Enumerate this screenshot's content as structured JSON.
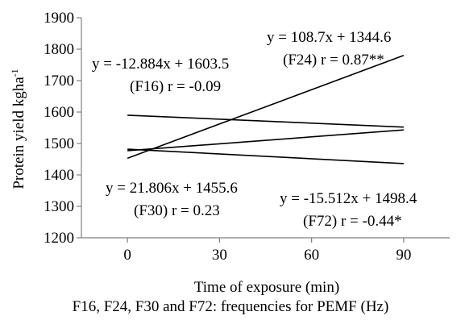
{
  "chart_data": {
    "type": "line",
    "xlabel": "Time of exposure (min)",
    "ylabel": "Protein yield kgha",
    "ylabel_superscript": "-1",
    "caption": "F16, F24, F30 and F72: frequencies for PEMF (Hz)",
    "x_ticks": [
      0,
      30,
      60,
      90
    ],
    "xlim": [
      -15,
      105
    ],
    "ylim": [
      1200,
      1900
    ],
    "y_ticks": [
      1200,
      1300,
      1400,
      1500,
      1600,
      1700,
      1800,
      1900
    ],
    "series": [
      {
        "id": "F16",
        "x": [
          0,
          90
        ],
        "y": [
          1590,
          1552
        ],
        "color": "#000000"
      },
      {
        "id": "F24",
        "x": [
          0,
          90
        ],
        "y": [
          1453,
          1780
        ],
        "color": "#000000"
      },
      {
        "id": "F30",
        "x": [
          0,
          90
        ],
        "y": [
          1477,
          1543
        ],
        "color": "#000000"
      },
      {
        "id": "F72",
        "x": [
          0,
          90
        ],
        "y": [
          1482,
          1436
        ],
        "color": "#000000"
      }
    ],
    "annotations": [
      {
        "id": "F16",
        "equation": "y = -12.884x + 1603.5",
        "stats": "(F16) r = -0.09"
      },
      {
        "id": "F24",
        "equation": "y = 108.7x + 1344.6",
        "stats": "(F24) r = 0.87**"
      },
      {
        "id": "F30",
        "equation": "y = 21.806x + 1455.6",
        "stats": "(F30) r = 0.23"
      },
      {
        "id": "F72",
        "equation": "y = -15.512x + 1498.4",
        "stats": "(F72) r = -0.44*"
      }
    ]
  }
}
